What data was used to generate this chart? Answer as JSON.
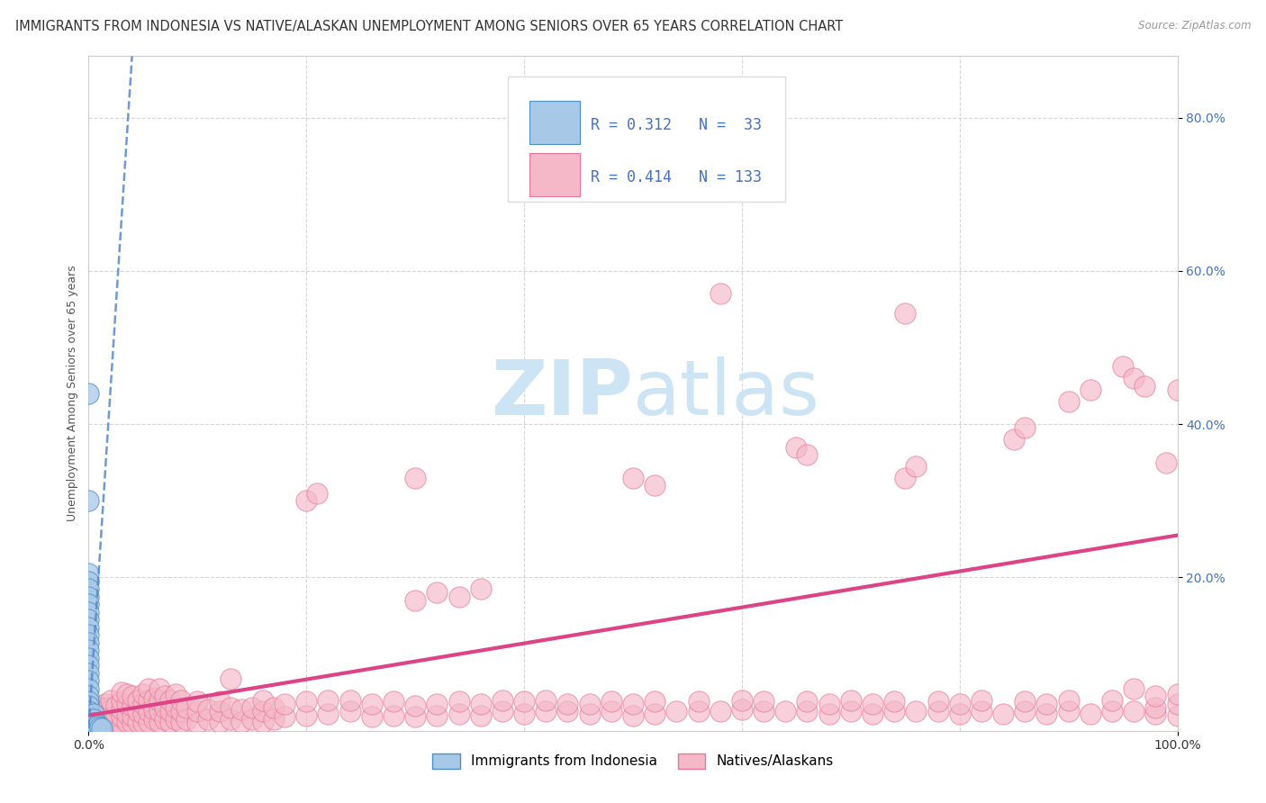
{
  "title": "IMMIGRANTS FROM INDONESIA VS NATIVE/ALASKAN UNEMPLOYMENT AMONG SENIORS OVER 65 YEARS CORRELATION CHART",
  "source": "Source: ZipAtlas.com",
  "ylabel": "Unemployment Among Seniors over 65 years",
  "xlim": [
    0,
    1.0
  ],
  "ylim": [
    0,
    0.88
  ],
  "yticks": [
    0.2,
    0.4,
    0.6,
    0.8
  ],
  "ytick_labels": [
    "20.0%",
    "40.0%",
    "60.0%",
    "80.0%"
  ],
  "xtick_labels": [
    "0.0%",
    "100.0%"
  ],
  "color_blue": "#a8c8e8",
  "color_blue_edge": "#4a90c4",
  "color_pink": "#f4b8c8",
  "color_pink_edge": "#e87898",
  "color_trendline_blue": "#5588cc",
  "color_trendline_pink": "#dd4488",
  "color_ytick": "#4472c4",
  "watermark_color": "#cce4f4",
  "grid_color": "#cccccc",
  "background": "#ffffff",
  "title_fontsize": 10.5,
  "tick_fontsize": 10,
  "ylabel_fontsize": 9,
  "blue_points": [
    [
      0.0,
      0.44
    ],
    [
      0.0,
      0.3
    ],
    [
      0.0,
      0.205
    ],
    [
      0.0,
      0.195
    ],
    [
      0.0,
      0.185
    ],
    [
      0.0,
      0.175
    ],
    [
      0.0,
      0.165
    ],
    [
      0.0,
      0.155
    ],
    [
      0.0,
      0.145
    ],
    [
      0.0,
      0.135
    ],
    [
      0.0,
      0.125
    ],
    [
      0.0,
      0.115
    ],
    [
      0.0,
      0.105
    ],
    [
      0.0,
      0.095
    ],
    [
      0.0,
      0.085
    ],
    [
      0.0,
      0.075
    ],
    [
      0.0,
      0.065
    ],
    [
      0.0,
      0.055
    ],
    [
      0.0,
      0.045
    ],
    [
      0.0,
      0.038
    ],
    [
      0.0,
      0.032
    ],
    [
      0.0,
      0.025
    ],
    [
      0.0,
      0.018
    ],
    [
      0.0,
      0.012
    ],
    [
      0.0,
      0.007
    ],
    [
      0.0,
      0.004
    ],
    [
      0.005,
      0.022
    ],
    [
      0.005,
      0.015
    ],
    [
      0.005,
      0.01
    ],
    [
      0.008,
      0.008
    ],
    [
      0.008,
      0.005
    ],
    [
      0.01,
      0.004
    ],
    [
      0.012,
      0.003
    ]
  ],
  "pink_points": [
    [
      0.0,
      0.005
    ],
    [
      0.0,
      0.012
    ],
    [
      0.0,
      0.018
    ],
    [
      0.005,
      0.01
    ],
    [
      0.005,
      0.015
    ],
    [
      0.008,
      0.008
    ],
    [
      0.008,
      0.02
    ],
    [
      0.01,
      0.005
    ],
    [
      0.01,
      0.015
    ],
    [
      0.01,
      0.025
    ],
    [
      0.012,
      0.01
    ],
    [
      0.012,
      0.02
    ],
    [
      0.012,
      0.03
    ],
    [
      0.015,
      0.005
    ],
    [
      0.015,
      0.015
    ],
    [
      0.015,
      0.025
    ],
    [
      0.015,
      0.035
    ],
    [
      0.018,
      0.01
    ],
    [
      0.018,
      0.02
    ],
    [
      0.018,
      0.03
    ],
    [
      0.02,
      0.008
    ],
    [
      0.02,
      0.018
    ],
    [
      0.02,
      0.028
    ],
    [
      0.02,
      0.04
    ],
    [
      0.025,
      0.01
    ],
    [
      0.025,
      0.02
    ],
    [
      0.025,
      0.032
    ],
    [
      0.03,
      0.008
    ],
    [
      0.03,
      0.018
    ],
    [
      0.03,
      0.028
    ],
    [
      0.03,
      0.038
    ],
    [
      0.03,
      0.05
    ],
    [
      0.035,
      0.012
    ],
    [
      0.035,
      0.022
    ],
    [
      0.035,
      0.035
    ],
    [
      0.035,
      0.048
    ],
    [
      0.04,
      0.01
    ],
    [
      0.04,
      0.02
    ],
    [
      0.04,
      0.032
    ],
    [
      0.04,
      0.045
    ],
    [
      0.045,
      0.012
    ],
    [
      0.045,
      0.025
    ],
    [
      0.045,
      0.04
    ],
    [
      0.05,
      0.01
    ],
    [
      0.05,
      0.022
    ],
    [
      0.05,
      0.035
    ],
    [
      0.05,
      0.048
    ],
    [
      0.055,
      0.012
    ],
    [
      0.055,
      0.025
    ],
    [
      0.055,
      0.04
    ],
    [
      0.055,
      0.055
    ],
    [
      0.06,
      0.015
    ],
    [
      0.06,
      0.028
    ],
    [
      0.06,
      0.042
    ],
    [
      0.065,
      0.012
    ],
    [
      0.065,
      0.025
    ],
    [
      0.065,
      0.04
    ],
    [
      0.065,
      0.055
    ],
    [
      0.07,
      0.015
    ],
    [
      0.07,
      0.03
    ],
    [
      0.07,
      0.045
    ],
    [
      0.075,
      0.012
    ],
    [
      0.075,
      0.025
    ],
    [
      0.075,
      0.04
    ],
    [
      0.08,
      0.015
    ],
    [
      0.08,
      0.03
    ],
    [
      0.08,
      0.048
    ],
    [
      0.085,
      0.012
    ],
    [
      0.085,
      0.025
    ],
    [
      0.085,
      0.04
    ],
    [
      0.09,
      0.015
    ],
    [
      0.09,
      0.03
    ],
    [
      0.1,
      0.01
    ],
    [
      0.1,
      0.025
    ],
    [
      0.1,
      0.038
    ],
    [
      0.11,
      0.015
    ],
    [
      0.11,
      0.028
    ],
    [
      0.12,
      0.012
    ],
    [
      0.12,
      0.025
    ],
    [
      0.12,
      0.038
    ],
    [
      0.13,
      0.015
    ],
    [
      0.13,
      0.03
    ],
    [
      0.13,
      0.068
    ],
    [
      0.14,
      0.012
    ],
    [
      0.14,
      0.028
    ],
    [
      0.15,
      0.015
    ],
    [
      0.15,
      0.03
    ],
    [
      0.16,
      0.012
    ],
    [
      0.16,
      0.025
    ],
    [
      0.16,
      0.04
    ],
    [
      0.17,
      0.015
    ],
    [
      0.17,
      0.03
    ],
    [
      0.18,
      0.018
    ],
    [
      0.18,
      0.035
    ],
    [
      0.2,
      0.02
    ],
    [
      0.2,
      0.038
    ],
    [
      0.22,
      0.022
    ],
    [
      0.22,
      0.04
    ],
    [
      0.24,
      0.025
    ],
    [
      0.24,
      0.04
    ],
    [
      0.26,
      0.018
    ],
    [
      0.26,
      0.035
    ],
    [
      0.28,
      0.02
    ],
    [
      0.28,
      0.038
    ],
    [
      0.3,
      0.018
    ],
    [
      0.3,
      0.032
    ],
    [
      0.32,
      0.02
    ],
    [
      0.32,
      0.035
    ],
    [
      0.34,
      0.022
    ],
    [
      0.34,
      0.038
    ],
    [
      0.36,
      0.02
    ],
    [
      0.36,
      0.035
    ],
    [
      0.38,
      0.025
    ],
    [
      0.38,
      0.04
    ],
    [
      0.4,
      0.022
    ],
    [
      0.4,
      0.038
    ],
    [
      0.42,
      0.025
    ],
    [
      0.42,
      0.04
    ],
    [
      0.44,
      0.025
    ],
    [
      0.44,
      0.035
    ],
    [
      0.46,
      0.022
    ],
    [
      0.46,
      0.035
    ],
    [
      0.48,
      0.025
    ],
    [
      0.48,
      0.038
    ],
    [
      0.5,
      0.02
    ],
    [
      0.5,
      0.035
    ],
    [
      0.52,
      0.022
    ],
    [
      0.52,
      0.038
    ],
    [
      0.54,
      0.025
    ],
    [
      0.56,
      0.025
    ],
    [
      0.56,
      0.038
    ],
    [
      0.58,
      0.025
    ],
    [
      0.6,
      0.028
    ],
    [
      0.6,
      0.04
    ],
    [
      0.62,
      0.025
    ],
    [
      0.62,
      0.038
    ],
    [
      0.64,
      0.025
    ],
    [
      0.66,
      0.025
    ],
    [
      0.66,
      0.038
    ],
    [
      0.68,
      0.022
    ],
    [
      0.68,
      0.035
    ],
    [
      0.7,
      0.025
    ],
    [
      0.7,
      0.04
    ],
    [
      0.72,
      0.022
    ],
    [
      0.72,
      0.035
    ],
    [
      0.74,
      0.025
    ],
    [
      0.74,
      0.038
    ],
    [
      0.76,
      0.025
    ],
    [
      0.78,
      0.025
    ],
    [
      0.78,
      0.038
    ],
    [
      0.8,
      0.022
    ],
    [
      0.8,
      0.035
    ],
    [
      0.82,
      0.025
    ],
    [
      0.82,
      0.04
    ],
    [
      0.84,
      0.022
    ],
    [
      0.86,
      0.025
    ],
    [
      0.86,
      0.038
    ],
    [
      0.88,
      0.022
    ],
    [
      0.88,
      0.035
    ],
    [
      0.9,
      0.025
    ],
    [
      0.9,
      0.04
    ],
    [
      0.92,
      0.022
    ],
    [
      0.94,
      0.025
    ],
    [
      0.94,
      0.04
    ],
    [
      0.96,
      0.025
    ],
    [
      0.96,
      0.055
    ],
    [
      0.98,
      0.022
    ],
    [
      0.98,
      0.03
    ],
    [
      0.98,
      0.045
    ],
    [
      1.0,
      0.02
    ],
    [
      1.0,
      0.035
    ],
    [
      1.0,
      0.048
    ],
    [
      0.3,
      0.17
    ],
    [
      0.32,
      0.18
    ],
    [
      0.34,
      0.175
    ],
    [
      0.36,
      0.185
    ],
    [
      0.2,
      0.3
    ],
    [
      0.21,
      0.31
    ],
    [
      0.5,
      0.33
    ],
    [
      0.52,
      0.32
    ],
    [
      0.65,
      0.37
    ],
    [
      0.66,
      0.36
    ],
    [
      0.58,
      0.57
    ],
    [
      0.3,
      0.33
    ],
    [
      0.75,
      0.33
    ],
    [
      0.76,
      0.345
    ],
    [
      0.85,
      0.38
    ],
    [
      0.86,
      0.395
    ],
    [
      0.9,
      0.43
    ],
    [
      0.92,
      0.445
    ],
    [
      0.95,
      0.475
    ],
    [
      0.96,
      0.46
    ],
    [
      0.97,
      0.45
    ],
    [
      0.99,
      0.35
    ],
    [
      1.0,
      0.445
    ],
    [
      0.75,
      0.545
    ]
  ],
  "blue_trendline_x": [
    0.0,
    0.018
  ],
  "blue_trendline_y_start": 0.003,
  "blue_trendline_slope": 22.0,
  "pink_trendline_x0": 0.0,
  "pink_trendline_y0": 0.02,
  "pink_trendline_x1": 1.0,
  "pink_trendline_y1": 0.255
}
